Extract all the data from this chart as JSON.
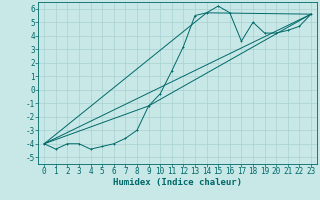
{
  "xlabel": "Humidex (Indice chaleur)",
  "ylabel": "",
  "background_color": "#c8e8e8",
  "grid_color": "#a8d0d0",
  "line_color": "#006868",
  "xlim": [
    -0.5,
    23.5
  ],
  "ylim": [
    -5.5,
    6.5
  ],
  "xticks": [
    0,
    1,
    2,
    3,
    4,
    5,
    6,
    7,
    8,
    9,
    10,
    11,
    12,
    13,
    14,
    15,
    16,
    17,
    18,
    19,
    20,
    21,
    22,
    23
  ],
  "yticks": [
    -5,
    -4,
    -3,
    -2,
    -1,
    0,
    1,
    2,
    3,
    4,
    5,
    6
  ],
  "series1_x": [
    0,
    1,
    2,
    3,
    4,
    5,
    6,
    7,
    8,
    9,
    10,
    11,
    12,
    13,
    14,
    15,
    16,
    17,
    18,
    19,
    20,
    21,
    22,
    23
  ],
  "series1_y": [
    -4.0,
    -4.4,
    -4.0,
    -4.0,
    -4.4,
    -4.2,
    -4.0,
    -3.6,
    -3.0,
    -1.2,
    -0.3,
    1.4,
    3.2,
    5.5,
    5.7,
    6.2,
    5.7,
    3.6,
    5.0,
    4.2,
    4.2,
    4.4,
    4.7,
    5.6
  ],
  "series2_x": [
    0,
    23
  ],
  "series2_y": [
    -4.0,
    5.6
  ],
  "series3_x": [
    0,
    14,
    23
  ],
  "series3_y": [
    -4.0,
    5.7,
    5.6
  ],
  "series4_x": [
    0,
    9,
    23
  ],
  "series4_y": [
    -4.0,
    -1.2,
    5.6
  ],
  "tick_fontsize": 5.5,
  "xlabel_fontsize": 6.5,
  "lw": 0.7,
  "marker_size": 2.0
}
